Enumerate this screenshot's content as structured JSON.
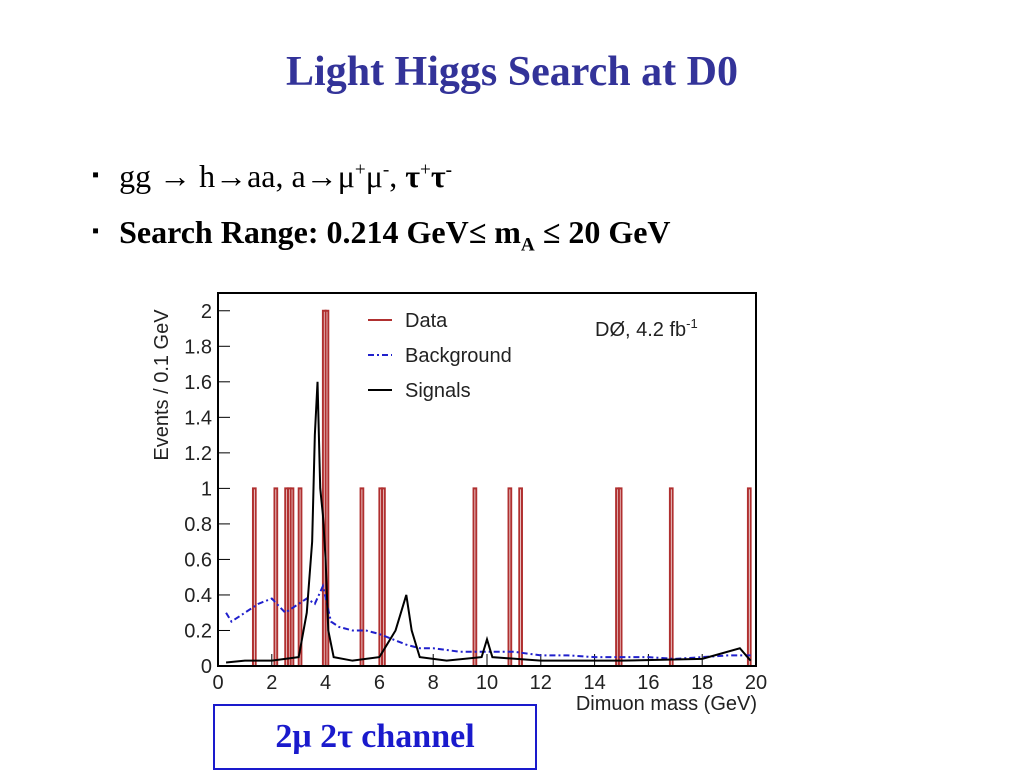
{
  "slide": {
    "title": "Light Higgs Search at D0",
    "bullets": [
      {
        "parts": [
          "gg → h→aa, a→μ",
          "+",
          "μ",
          "-",
          ", ",
          "τ",
          "+",
          "τ",
          "-"
        ]
      },
      {
        "parts": [
          "Search Range: 0.214 GeV≤ m",
          "A",
          " ≤ 20 GeV"
        ]
      }
    ],
    "caption": "2μ 2τ channel"
  },
  "chart_data": {
    "type": "histogram",
    "xlabel": "Dimuon mass (GeV)",
    "ylabel": "Events / 0.1 GeV",
    "annotation": {
      "text": "DØ, 4.2 fb",
      "sup": "-1"
    },
    "xlim": [
      0,
      20
    ],
    "ylim": [
      0,
      2.1
    ],
    "xticks": [
      0,
      2,
      4,
      6,
      8,
      10,
      12,
      14,
      16,
      18,
      20
    ],
    "yticks": [
      0,
      0.2,
      0.4,
      0.6,
      0.8,
      1,
      1.2,
      1.4,
      1.6,
      1.8,
      2
    ],
    "bin_width": 0.1,
    "series": [
      {
        "name": "Data",
        "color": "#b03030",
        "style": "bins",
        "x": [
          1.3,
          2.1,
          2.5,
          2.6,
          2.7,
          3.0,
          3.9,
          4.0,
          5.3,
          6.0,
          6.1,
          9.5,
          10.8,
          11.2,
          14.8,
          14.9,
          16.8,
          19.7
        ],
        "values": [
          1,
          1,
          1,
          1,
          1,
          1,
          2,
          2,
          1,
          1,
          1,
          1,
          1,
          1,
          1,
          1,
          1,
          1
        ]
      },
      {
        "name": "Background",
        "color": "#2020cc",
        "style": "dashdot",
        "x": [
          0.3,
          0.5,
          1.0,
          1.5,
          2.0,
          2.5,
          3.0,
          3.3,
          3.6,
          3.9,
          4.2,
          4.5,
          5.0,
          5.5,
          6.0,
          6.5,
          7.0,
          7.5,
          8.0,
          9.0,
          10.0,
          11.0,
          12.0,
          13.0,
          14.0,
          15.0,
          16.0,
          17.0,
          18.0,
          19.0,
          19.8
        ],
        "values": [
          0.3,
          0.25,
          0.3,
          0.35,
          0.38,
          0.3,
          0.35,
          0.38,
          0.35,
          0.45,
          0.25,
          0.22,
          0.2,
          0.2,
          0.18,
          0.15,
          0.12,
          0.1,
          0.1,
          0.08,
          0.08,
          0.08,
          0.06,
          0.06,
          0.05,
          0.05,
          0.05,
          0.04,
          0.05,
          0.06,
          0.06
        ]
      },
      {
        "name": "Signals",
        "color": "#000000",
        "style": "solid",
        "x": [
          0.3,
          1.0,
          2.0,
          3.0,
          3.3,
          3.5,
          3.6,
          3.7,
          3.8,
          3.9,
          4.0,
          4.1,
          4.3,
          5.0,
          6.0,
          6.6,
          6.8,
          7.0,
          7.2,
          7.5,
          8.5,
          9.8,
          10.0,
          10.2,
          12.0,
          15.0,
          18.0,
          19.4,
          19.8
        ],
        "values": [
          0.02,
          0.03,
          0.03,
          0.05,
          0.3,
          0.7,
          1.3,
          1.6,
          1.0,
          0.85,
          0.6,
          0.2,
          0.05,
          0.03,
          0.05,
          0.2,
          0.3,
          0.4,
          0.2,
          0.05,
          0.03,
          0.05,
          0.15,
          0.05,
          0.03,
          0.03,
          0.04,
          0.1,
          0.03
        ]
      }
    ]
  }
}
